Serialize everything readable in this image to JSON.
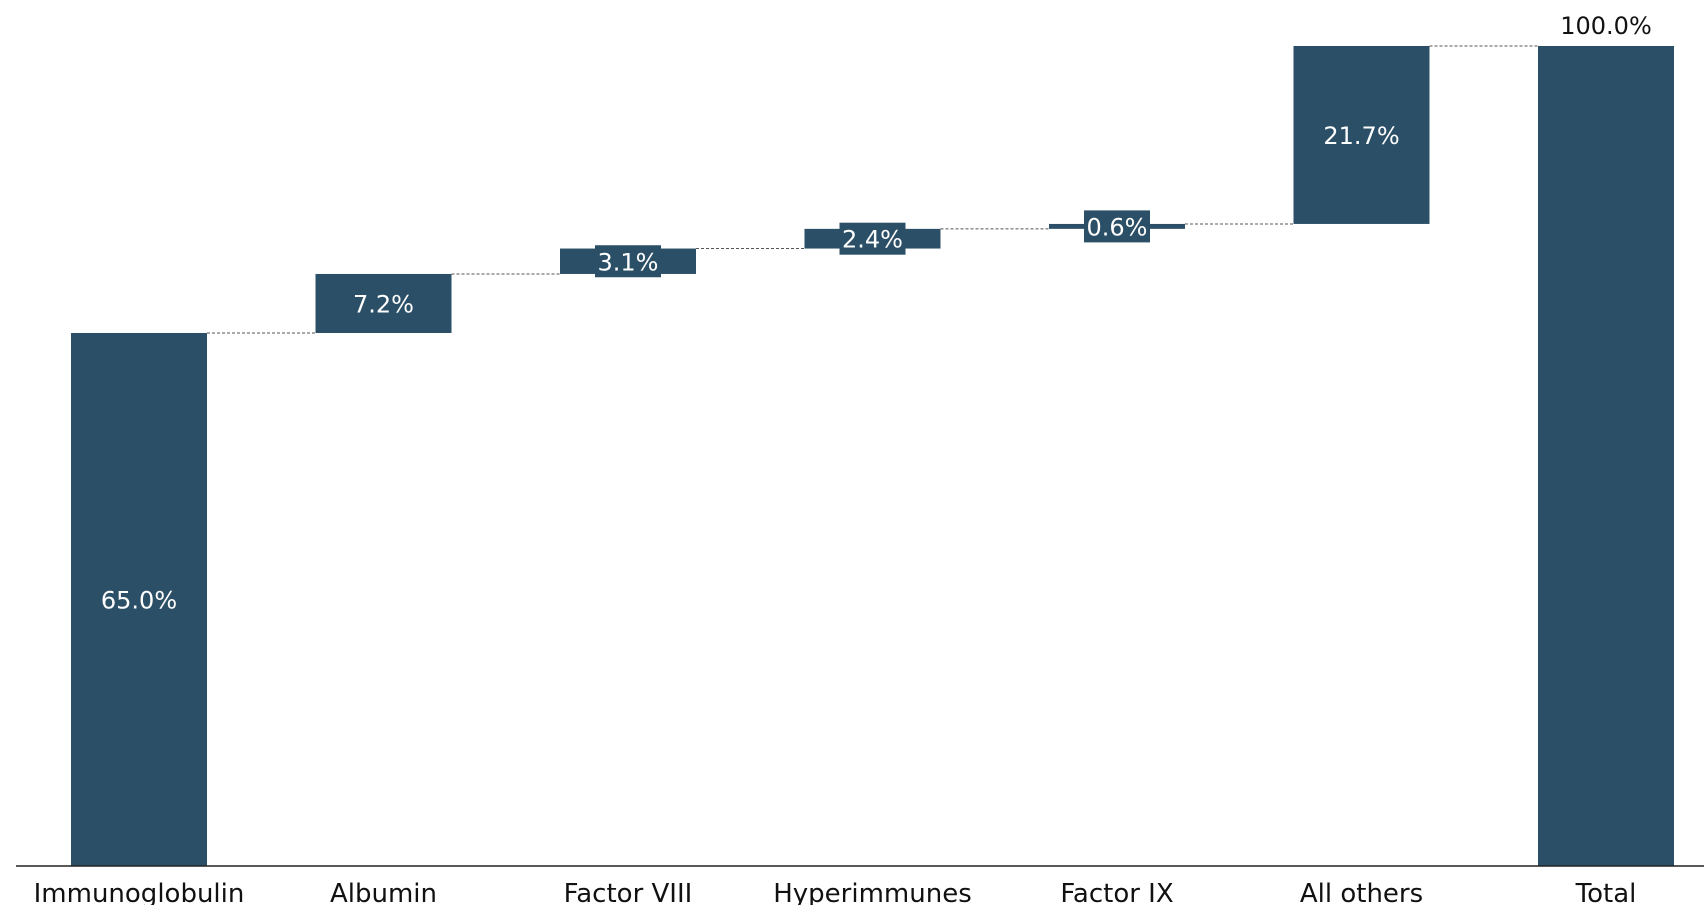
{
  "chart_data": {
    "type": "bar",
    "subtype": "waterfall",
    "categories": [
      "Immunoglobulin",
      "Albumin",
      "Factor VIII",
      "Hyperimmunes",
      "Factor IX",
      "All others",
      "Total"
    ],
    "values": [
      65.0,
      7.2,
      3.1,
      2.4,
      0.6,
      21.7,
      100.0
    ],
    "labels": [
      "65.0%",
      "7.2%",
      "3.1%",
      "2.4%",
      "0.6%",
      "21.7%",
      "100.0%"
    ],
    "total_index": 6,
    "ylim": [
      0,
      100
    ],
    "title": "",
    "xlabel": "",
    "ylabel": "",
    "grid": false,
    "legend": "none",
    "colors": {
      "bar": "#2b4f66",
      "connector": "#555555",
      "axis": "#222222"
    }
  }
}
